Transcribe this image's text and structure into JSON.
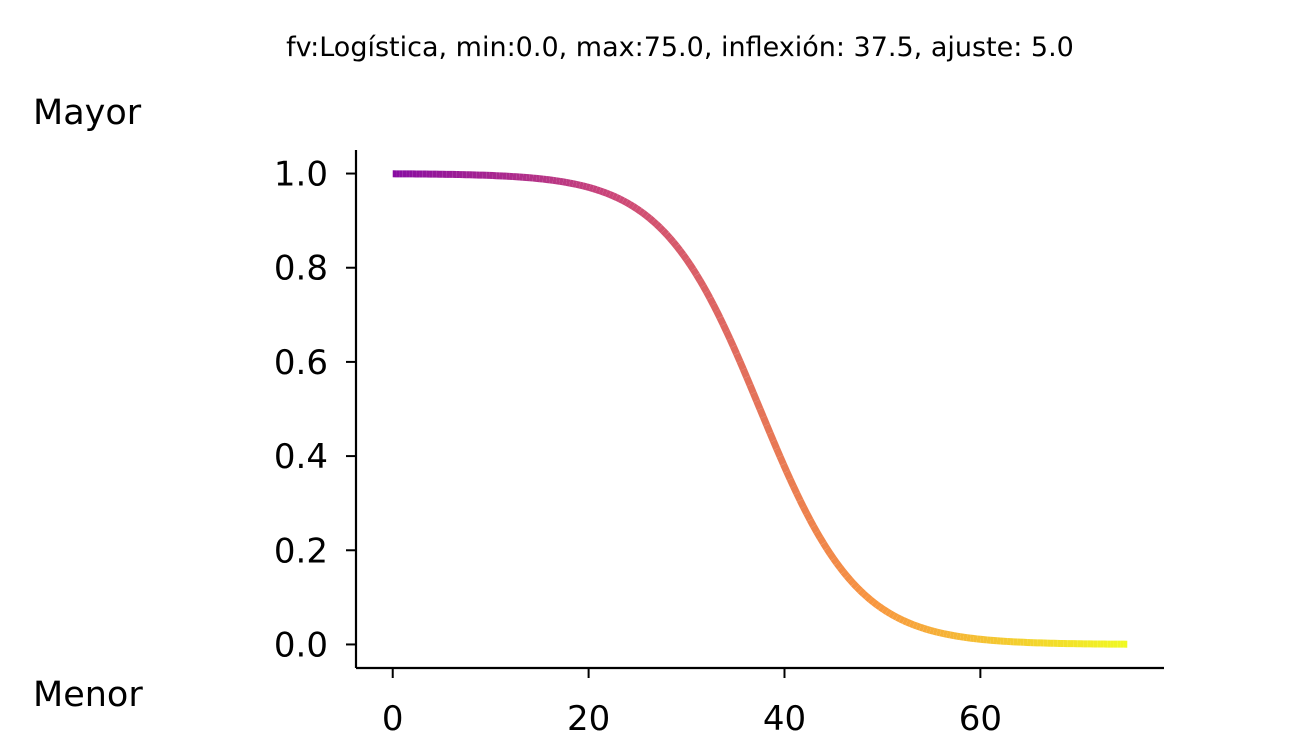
{
  "chart_data": {
    "type": "line",
    "title": "fv:Logística, min:0.0, max:75.0, inflexión: 37.5, ajuste: 5.0",
    "label_high": "Mayor",
    "label_low": "Menor",
    "xlabel": "",
    "ylabel": "",
    "xlim": [
      -3.75,
      78.75
    ],
    "ylim": [
      -0.05,
      1.05
    ],
    "xticks": [
      0,
      20,
      40,
      60
    ],
    "xtick_labels": [
      "0",
      "20",
      "40",
      "60"
    ],
    "yticks": [
      0.0,
      0.2,
      0.4,
      0.6,
      0.8,
      1.0
    ],
    "ytick_labels": [
      "0.0",
      "0.2",
      "0.4",
      "0.6",
      "0.8",
      "1.0"
    ],
    "grid": false,
    "colormap": "plasma",
    "function": {
      "kind": "logistic",
      "min": 0.0,
      "max": 75.0,
      "inflection": 37.5,
      "scale": 5.0
    },
    "x": [
      0,
      5,
      10,
      15,
      20,
      25,
      30,
      32.5,
      35,
      37.5,
      40,
      42.5,
      45,
      50,
      55,
      60,
      65,
      70,
      75
    ],
    "y": [
      1.0,
      1.0,
      1.0,
      0.996,
      0.971,
      0.924,
      0.818,
      0.731,
      0.622,
      0.5,
      0.378,
      0.269,
      0.182,
      0.076,
      0.029,
      0.011,
      0.004,
      0.002,
      0.0
    ]
  }
}
